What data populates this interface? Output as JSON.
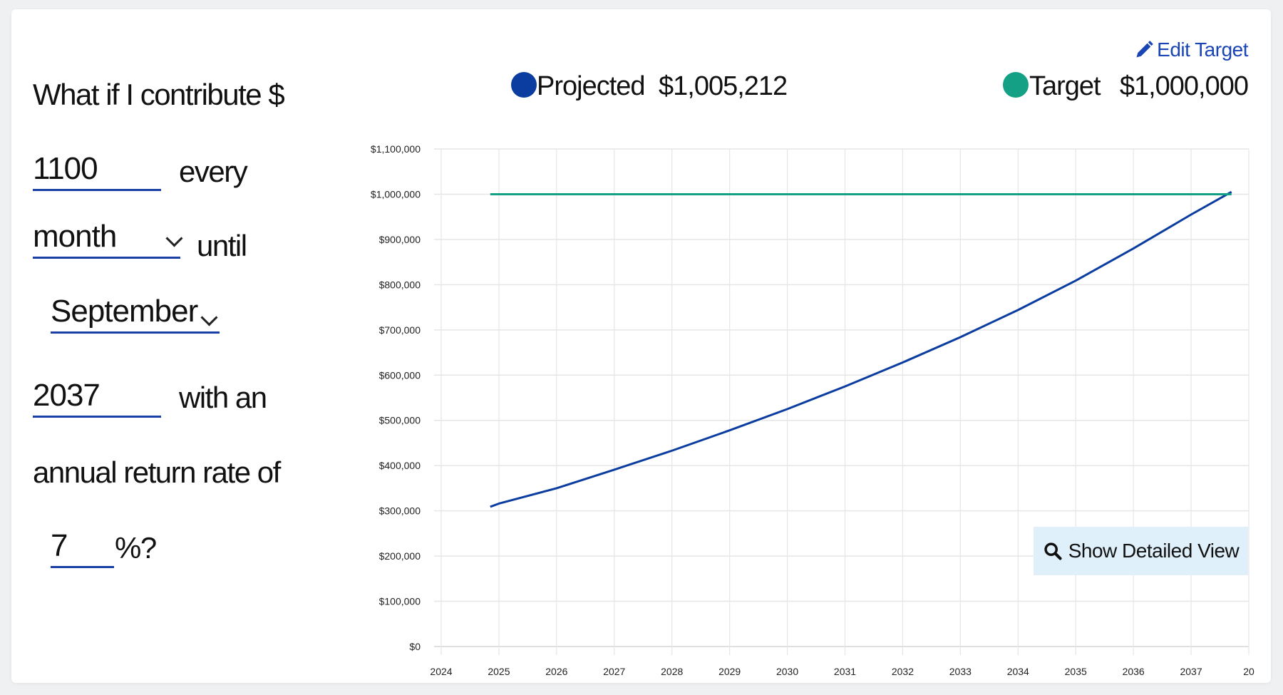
{
  "form": {
    "intro": "What if I contribute $",
    "amount": "1100",
    "every_label": "every",
    "frequency": "month",
    "until_label": "until",
    "end_month": "September",
    "end_year": "2037",
    "with_an_label": "with an",
    "rate_label": "annual return rate of",
    "rate": "7",
    "percent_label": "%?"
  },
  "legend": {
    "edit_target": "Edit Target",
    "projected_label": "Projected",
    "projected_value": "$1,005,212",
    "target_label": "Target",
    "target_value": "$1,000,000"
  },
  "button": {
    "show_detailed_view": "Show Detailed View"
  },
  "colors": {
    "projected": "#0b3da0",
    "target": "#13a085",
    "accent": "#1a45b5"
  },
  "chart_data": {
    "type": "line",
    "x_ticks": [
      "2024",
      "2025",
      "2026",
      "2027",
      "2028",
      "2029",
      "2030",
      "2031",
      "2032",
      "2033",
      "2034",
      "2035",
      "2036",
      "2037",
      "20"
    ],
    "y_ticks": [
      "$0",
      "$100,000",
      "$200,000",
      "$300,000",
      "$400,000",
      "$500,000",
      "$600,000",
      "$700,000",
      "$800,000",
      "$900,000",
      "$1,000,000",
      "$1,100,000"
    ],
    "xlim": [
      2024,
      2038
    ],
    "ylim": [
      0,
      1100000
    ],
    "grid": true,
    "series": [
      {
        "name": "Projected",
        "x": [
          2024.85,
          2025,
          2026,
          2027,
          2028,
          2029,
          2030,
          2031,
          2032,
          2033,
          2034,
          2035,
          2036,
          2037,
          2037.7
        ],
        "values": [
          309000,
          316000,
          350000,
          391000,
          433000,
          478000,
          525000,
          575000,
          628000,
          684000,
          744000,
          809000,
          880000,
          955000,
          1005212
        ]
      },
      {
        "name": "Target",
        "x": [
          2024.85,
          2037.7
        ],
        "values": [
          1000000,
          1000000
        ]
      }
    ]
  }
}
